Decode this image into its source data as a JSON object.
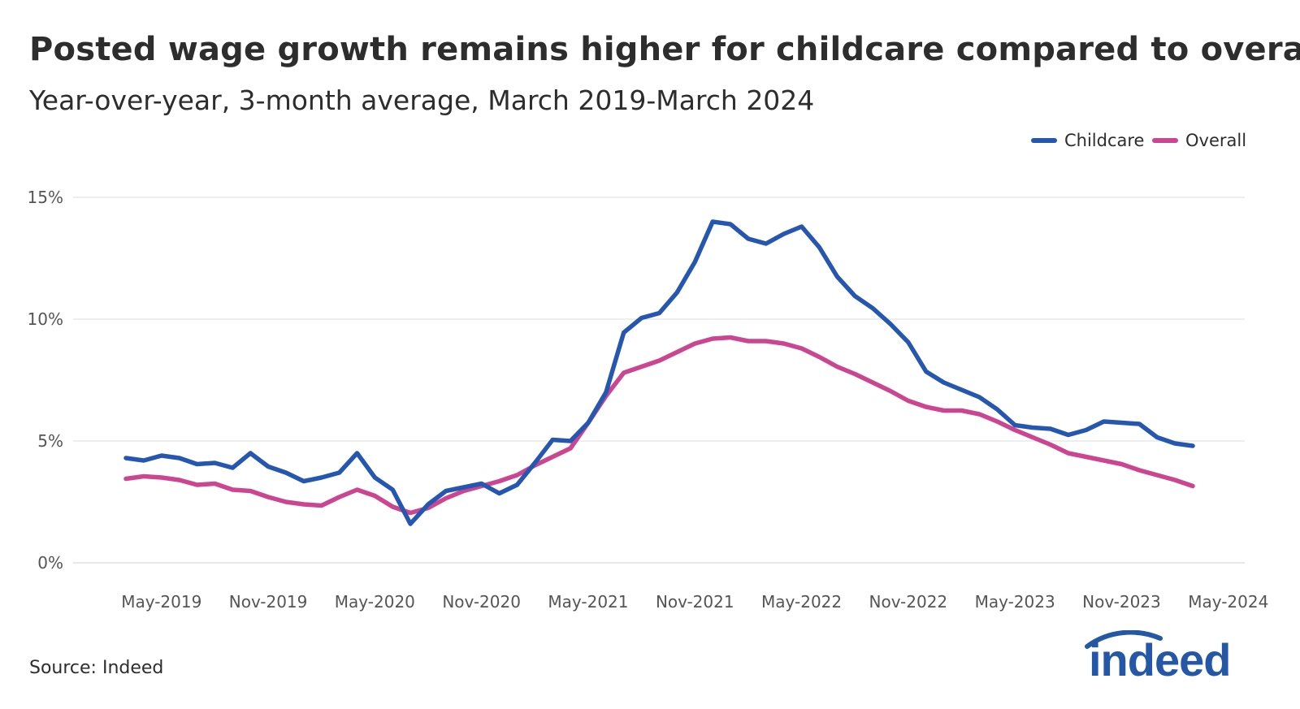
{
  "header": {
    "title": "Posted wage growth remains higher for childcare compared to overall",
    "subtitle": "Year-over-year, 3-month average, March 2019-March 2024"
  },
  "footer": {
    "source": "Source: Indeed",
    "logo_text": "indeed"
  },
  "colors": {
    "childcare": "#2557b0",
    "overall": "#cc4591",
    "grid": "#dcdcdc",
    "text": "#2d2d2d",
    "logo": "#2557a7"
  },
  "chart_data": {
    "type": "line",
    "title": "Posted wage growth remains higher for childcare compared to overall",
    "subtitle": "Year-over-year, 3-month average, March 2019-March 2024",
    "x": [
      "2019-03",
      "2019-04",
      "2019-05",
      "2019-06",
      "2019-07",
      "2019-08",
      "2019-09",
      "2019-10",
      "2019-11",
      "2019-12",
      "2020-01",
      "2020-02",
      "2020-03",
      "2020-04",
      "2020-05",
      "2020-06",
      "2020-07",
      "2020-08",
      "2020-09",
      "2020-10",
      "2020-11",
      "2020-12",
      "2021-01",
      "2021-02",
      "2021-03",
      "2021-04",
      "2021-05",
      "2021-06",
      "2021-07",
      "2021-08",
      "2021-09",
      "2021-10",
      "2021-11",
      "2021-12",
      "2022-01",
      "2022-02",
      "2022-03",
      "2022-04",
      "2022-05",
      "2022-06",
      "2022-07",
      "2022-08",
      "2022-09",
      "2022-10",
      "2022-11",
      "2022-12",
      "2023-01",
      "2023-02",
      "2023-03",
      "2023-04",
      "2023-05",
      "2023-06",
      "2023-07",
      "2023-08",
      "2023-09",
      "2023-10",
      "2023-11",
      "2023-12",
      "2024-01",
      "2024-02",
      "2024-03"
    ],
    "series": [
      {
        "name": "Childcare",
        "values": [
          4.3,
          4.2,
          4.4,
          4.3,
          4.05,
          4.1,
          3.9,
          4.5,
          3.95,
          3.7,
          3.35,
          3.5,
          3.7,
          4.5,
          3.5,
          3.0,
          1.6,
          2.4,
          2.95,
          3.1,
          3.25,
          2.85,
          3.2,
          4.1,
          5.05,
          5.0,
          5.75,
          7.0,
          9.45,
          10.05,
          10.25,
          11.1,
          12.35,
          14.0,
          13.9,
          13.3,
          13.1,
          13.5,
          13.8,
          12.95,
          11.75,
          10.95,
          10.45,
          9.8,
          9.05,
          7.85,
          7.4,
          7.1,
          6.8,
          6.3,
          5.65,
          5.55,
          5.5,
          5.25,
          5.45,
          5.8,
          5.75,
          5.7,
          5.15,
          4.9,
          4.8
        ]
      },
      {
        "name": "Overall",
        "values": [
          3.45,
          3.55,
          3.5,
          3.4,
          3.2,
          3.25,
          3.0,
          2.95,
          2.7,
          2.5,
          2.4,
          2.35,
          2.7,
          3.0,
          2.75,
          2.3,
          2.05,
          2.25,
          2.65,
          2.95,
          3.15,
          3.35,
          3.6,
          4.0,
          4.35,
          4.7,
          5.75,
          6.85,
          7.8,
          8.05,
          8.3,
          8.65,
          9.0,
          9.2,
          9.25,
          9.1,
          9.1,
          9.0,
          8.8,
          8.45,
          8.05,
          7.75,
          7.4,
          7.05,
          6.65,
          6.4,
          6.25,
          6.25,
          6.1,
          5.8,
          5.45,
          5.15,
          4.85,
          4.5,
          4.35,
          4.2,
          4.05,
          3.8,
          3.6,
          3.4,
          3.15
        ]
      }
    ],
    "x_tick_labels": [
      "May-2019",
      "Nov-2019",
      "May-2020",
      "Nov-2020",
      "May-2021",
      "Nov-2021",
      "May-2022",
      "Nov-2022",
      "May-2023",
      "Nov-2023",
      "May-2024"
    ],
    "x_tick_values": [
      "2019-05",
      "2019-11",
      "2020-05",
      "2020-11",
      "2021-05",
      "2021-11",
      "2022-05",
      "2022-11",
      "2023-05",
      "2023-11",
      "2024-05"
    ],
    "y_ticks": [
      0,
      5,
      10,
      15
    ],
    "y_tick_labels": [
      "0%",
      "5%",
      "10%",
      "15%"
    ],
    "ylim": [
      0,
      15
    ],
    "xlim": [
      "2019-03",
      "2024-05"
    ],
    "grid": "horizontal",
    "legend_position": "top-right",
    "xlabel": "",
    "ylabel": ""
  }
}
